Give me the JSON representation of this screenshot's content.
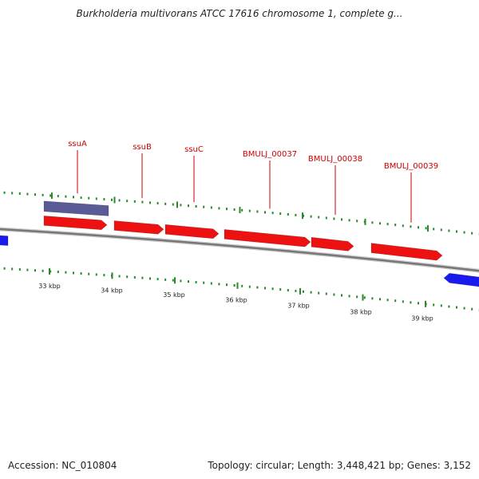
{
  "header": {
    "title": "Burkholderia multivorans ATCC 17616 chromosome 1, complete g..."
  },
  "footer": {
    "accession": "Accession: NC_010804",
    "stats": "Topology: circular; Length: 3,448,421 bp; Genes: 3,152"
  },
  "colors": {
    "gene_forward": "#ee1111",
    "gene_reverse": "#1a1aee",
    "selected_gene": "#5a5a96",
    "label_line": "#cc0000",
    "tick_green": "#2a8a2a",
    "backbone": "#777777"
  },
  "genes": [
    {
      "label": "ssuA"
    },
    {
      "label": "ssuB"
    },
    {
      "label": "ssuC"
    },
    {
      "label": "BMULJ_00037"
    },
    {
      "label": "BMULJ_00038"
    },
    {
      "label": "BMULJ_00039"
    }
  ],
  "scale": {
    "ticks": [
      "33 kbp",
      "34 kbp",
      "35 kbp",
      "36 kbp",
      "37 kbp",
      "38 kbp",
      "39 kbp"
    ]
  }
}
